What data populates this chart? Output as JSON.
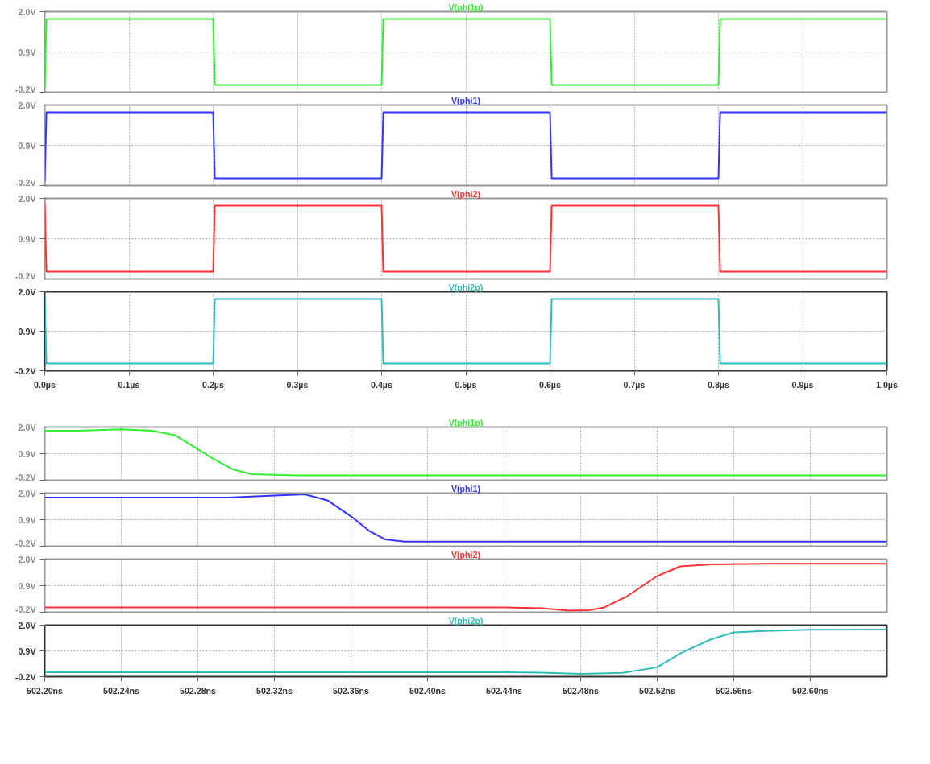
{
  "chart_data": [
    {
      "type": "line",
      "title": "V(phi1p)",
      "x": [
        0,
        0.002,
        0.2,
        0.202,
        0.4,
        0.402,
        0.6,
        0.602,
        0.8,
        0.802,
        1.0
      ],
      "series": [
        {
          "color": "#33ee33",
          "values": [
            -0.1,
            1.8,
            1.8,
            0.0,
            0.0,
            1.8,
            1.8,
            0.0,
            0.0,
            1.8,
            1.8
          ]
        }
      ],
      "xlim": [
        0,
        1.0
      ],
      "ylim": [
        -0.2,
        2.0
      ],
      "xticks": [
        0,
        0.1,
        0.2,
        0.3,
        0.4,
        0.5,
        0.6,
        0.7,
        0.8,
        0.9,
        1.0
      ],
      "yticks": [
        {
          "value": -0.2,
          "label": "-0.2V"
        },
        {
          "value": 0.9,
          "label": "0.9V"
        },
        {
          "value": 2.0,
          "label": "2.0V"
        }
      ],
      "grid": true,
      "tick_labels": "y"
    },
    {
      "type": "line",
      "title": "V(phi1)",
      "x": [
        0,
        0.002,
        0.2,
        0.202,
        0.4,
        0.402,
        0.6,
        0.602,
        0.8,
        0.802,
        1.0
      ],
      "series": [
        {
          "color": "#3333ff",
          "values": [
            -0.1,
            1.8,
            1.8,
            0.0,
            0.0,
            1.8,
            1.8,
            0.0,
            0.0,
            1.8,
            1.8
          ]
        }
      ],
      "xlim": [
        0,
        1.0
      ],
      "ylim": [
        -0.2,
        2.0
      ],
      "xticks": [
        0,
        0.1,
        0.2,
        0.3,
        0.4,
        0.5,
        0.6,
        0.7,
        0.8,
        0.9,
        1.0
      ],
      "yticks": [
        {
          "value": -0.2,
          "label": "-0.2V"
        },
        {
          "value": 0.9,
          "label": "0.9V"
        },
        {
          "value": 2.0,
          "label": "2.0V"
        }
      ],
      "grid": true,
      "tick_labels": "y"
    },
    {
      "type": "line",
      "title": "V(phi2)",
      "x": [
        0,
        0.002,
        0.2,
        0.202,
        0.4,
        0.402,
        0.6,
        0.602,
        0.8,
        0.802,
        1.0
      ],
      "series": [
        {
          "color": "#ff3333",
          "values": [
            1.9,
            0.0,
            0.0,
            1.8,
            1.8,
            0.0,
            0.0,
            1.8,
            1.8,
            0.0,
            0.0
          ]
        }
      ],
      "xlim": [
        0,
        1.0
      ],
      "ylim": [
        -0.2,
        2.0
      ],
      "xticks": [
        0,
        0.1,
        0.2,
        0.3,
        0.4,
        0.5,
        0.6,
        0.7,
        0.8,
        0.9,
        1.0
      ],
      "yticks": [
        {
          "value": -0.2,
          "label": "-0.2V"
        },
        {
          "value": 0.9,
          "label": "0.9V"
        },
        {
          "value": 2.0,
          "label": "2.0V"
        }
      ],
      "grid": true,
      "tick_labels": "y"
    },
    {
      "type": "line",
      "title": "V(phi2p)",
      "x": [
        0,
        0.002,
        0.2,
        0.202,
        0.4,
        0.402,
        0.6,
        0.602,
        0.8,
        0.802,
        1.0
      ],
      "series": [
        {
          "color": "#33bbbb",
          "values": [
            1.9,
            0.0,
            0.0,
            1.8,
            1.8,
            0.0,
            0.0,
            1.8,
            1.8,
            0.0,
            0.0
          ]
        }
      ],
      "xlim": [
        0,
        1.0
      ],
      "ylim": [
        -0.2,
        2.0
      ],
      "xticks": [
        {
          "value": 0,
          "label": "0.0µs"
        },
        {
          "value": 0.1,
          "label": "0.1µs"
        },
        {
          "value": 0.2,
          "label": "0.2µs"
        },
        {
          "value": 0.3,
          "label": "0.3µs"
        },
        {
          "value": 0.4,
          "label": "0.4µs"
        },
        {
          "value": 0.5,
          "label": "0.5µs"
        },
        {
          "value": 0.6,
          "label": "0.6µs"
        },
        {
          "value": 0.7,
          "label": "0.7µs"
        },
        {
          "value": 0.8,
          "label": "0.8µs"
        },
        {
          "value": 0.9,
          "label": "0.9µs"
        },
        {
          "value": 1.0,
          "label": "1.0µs"
        }
      ],
      "yticks": [
        {
          "value": -0.2,
          "label": "-0.2V"
        },
        {
          "value": 0.9,
          "label": "0.9V"
        },
        {
          "value": 2.0,
          "label": "2.0V"
        }
      ],
      "grid": true
    },
    {
      "type": "line",
      "title": "V(phi1p)",
      "x": [
        502.2,
        502.218,
        502.24,
        502.256,
        502.268,
        502.28,
        502.286,
        502.298,
        502.308,
        502.332,
        502.64
      ],
      "series": [
        {
          "color": "#33ee33",
          "values": [
            1.85,
            1.85,
            1.91,
            1.85,
            1.67,
            1.09,
            0.78,
            0.26,
            0.05,
            0.0,
            0.0
          ]
        }
      ],
      "xlim": [
        502.2,
        502.64
      ],
      "ylim": [
        -0.2,
        2.0
      ],
      "xticks": [
        502.2,
        502.24,
        502.28,
        502.32,
        502.36,
        502.4,
        502.44,
        502.48,
        502.52,
        502.56,
        502.6
      ],
      "yticks": [
        {
          "value": -0.2,
          "label": "-0.2V"
        },
        {
          "value": 0.9,
          "label": "0.9V"
        },
        {
          "value": 2.0,
          "label": "2.0V"
        }
      ],
      "grid": true,
      "tick_labels": "y"
    },
    {
      "type": "line",
      "title": "V(phi1)",
      "x": [
        502.2,
        502.296,
        502.32,
        502.336,
        502.348,
        502.36,
        502.37,
        502.378,
        502.388,
        502.64
      ],
      "series": [
        {
          "color": "#3333ff",
          "values": [
            1.82,
            1.82,
            1.9,
            1.95,
            1.69,
            1.04,
            0.41,
            0.08,
            -0.01,
            -0.01
          ]
        }
      ],
      "xlim": [
        502.2,
        502.64
      ],
      "ylim": [
        -0.2,
        2.0
      ],
      "xticks": [
        502.2,
        502.24,
        502.28,
        502.32,
        502.36,
        502.4,
        502.44,
        502.48,
        502.52,
        502.56,
        502.6
      ],
      "yticks": [
        {
          "value": -0.2,
          "label": "-0.2V"
        },
        {
          "value": 0.9,
          "label": "0.9V"
        },
        {
          "value": 2.0,
          "label": "2.0V"
        }
      ],
      "grid": true,
      "tick_labels": "y"
    },
    {
      "type": "line",
      "title": "V(phi2)",
      "x": [
        502.2,
        502.44,
        502.46,
        502.474,
        502.484,
        502.492,
        502.504,
        502.52,
        502.532,
        502.548,
        502.576,
        502.64
      ],
      "series": [
        {
          "color": "#ff3333",
          "values": [
            0.0,
            0.0,
            -0.03,
            -0.13,
            -0.12,
            -0.01,
            0.45,
            1.3,
            1.7,
            1.78,
            1.81,
            1.81
          ]
        }
      ],
      "xlim": [
        502.2,
        502.64
      ],
      "ylim": [
        -0.2,
        2.0
      ],
      "xticks": [
        502.2,
        502.24,
        502.28,
        502.32,
        502.36,
        502.4,
        502.44,
        502.48,
        502.52,
        502.56,
        502.6
      ],
      "yticks": [
        {
          "value": -0.2,
          "label": "-0.2V"
        },
        {
          "value": 0.9,
          "label": "0.9V"
        },
        {
          "value": 2.0,
          "label": "2.0V"
        }
      ],
      "grid": true,
      "tick_labels": "y"
    },
    {
      "type": "line",
      "title": "V(phi2p)",
      "x": [
        502.2,
        502.44,
        502.46,
        502.48,
        502.502,
        502.52,
        502.532,
        502.548,
        502.56,
        502.576,
        502.6,
        502.64
      ],
      "series": [
        {
          "color": "#33bbbb",
          "values": [
            -0.01,
            -0.01,
            -0.03,
            -0.08,
            -0.04,
            0.2,
            0.79,
            1.39,
            1.69,
            1.75,
            1.8,
            1.81
          ]
        }
      ],
      "xlim": [
        502.2,
        502.64
      ],
      "ylim": [
        -0.2,
        2.0
      ],
      "xticks": [
        {
          "value": 502.2,
          "label": "502.20ns"
        },
        {
          "value": 502.24,
          "label": "502.24ns"
        },
        {
          "value": 502.28,
          "label": "502.28ns"
        },
        {
          "value": 502.32,
          "label": "502.32ns"
        },
        {
          "value": 502.36,
          "label": "502.36ns"
        },
        {
          "value": 502.4,
          "label": "502.40ns"
        },
        {
          "value": 502.44,
          "label": "502.44ns"
        },
        {
          "value": 502.48,
          "label": "502.48ns"
        },
        {
          "value": 502.52,
          "label": "502.52ns"
        },
        {
          "value": 502.56,
          "label": "502.56ns"
        },
        {
          "value": 502.6,
          "label": "502.60ns"
        }
      ],
      "yticks": [
        {
          "value": -0.2,
          "label": "-0.2V"
        },
        {
          "value": 0.9,
          "label": "0.9V"
        },
        {
          "value": 2.0,
          "label": "2.0V"
        }
      ],
      "grid": true
    }
  ]
}
